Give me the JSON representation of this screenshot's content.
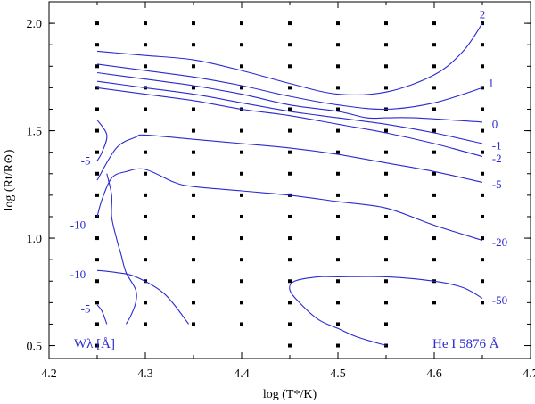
{
  "chart_data": {
    "type": "contour",
    "xlabel": "log (T*/K)",
    "ylabel": "log (Rt/R⊙)",
    "xlim": [
      4.2,
      4.7
    ],
    "ylim": [
      0.44,
      2.1
    ],
    "xticks": [
      "4.2",
      "4.3",
      "4.4",
      "4.5",
      "4.6",
      "4.7"
    ],
    "yticks": [
      "0.5",
      "1.0",
      "1.5",
      "2.0"
    ],
    "annotations": {
      "left": "Wλ [Å]",
      "right": "He I 5876 Å"
    },
    "grid": {
      "x": [
        4.25,
        4.3,
        4.35,
        4.4,
        4.45,
        4.5,
        4.55,
        4.6,
        4.65
      ],
      "y": [
        0.5,
        0.6,
        0.7,
        0.8,
        0.9,
        1.0,
        1.1,
        1.2,
        1.3,
        1.4,
        1.5,
        1.6,
        1.7,
        1.8,
        1.9,
        2.0
      ]
    },
    "contours": [
      {
        "label": "2",
        "label_at": [
          4.647,
          2.04
        ],
        "points": [
          [
            4.25,
            1.87
          ],
          [
            4.3,
            1.85
          ],
          [
            4.35,
            1.83
          ],
          [
            4.4,
            1.78
          ],
          [
            4.45,
            1.72
          ],
          [
            4.5,
            1.67
          ],
          [
            4.55,
            1.68
          ],
          [
            4.6,
            1.76
          ],
          [
            4.63,
            1.87
          ],
          [
            4.65,
            2.0
          ]
        ]
      },
      {
        "label": "1",
        "label_at": [
          4.656,
          1.72
        ],
        "points": [
          [
            4.25,
            1.81
          ],
          [
            4.3,
            1.78
          ],
          [
            4.35,
            1.75
          ],
          [
            4.4,
            1.71
          ],
          [
            4.45,
            1.66
          ],
          [
            4.5,
            1.62
          ],
          [
            4.55,
            1.6
          ],
          [
            4.6,
            1.63
          ],
          [
            4.65,
            1.7
          ]
        ]
      },
      {
        "label": "0",
        "label_at": [
          4.66,
          1.53
        ],
        "points": [
          [
            4.25,
            1.77
          ],
          [
            4.3,
            1.74
          ],
          [
            4.35,
            1.71
          ],
          [
            4.4,
            1.67
          ],
          [
            4.45,
            1.62
          ],
          [
            4.5,
            1.59
          ],
          [
            4.53,
            1.56
          ],
          [
            4.55,
            1.56
          ],
          [
            4.58,
            1.56
          ],
          [
            4.65,
            1.54
          ]
        ]
      },
      {
        "label": "-1",
        "label_at": [
          4.66,
          1.43
        ],
        "points": [
          [
            4.25,
            1.73
          ],
          [
            4.3,
            1.7
          ],
          [
            4.35,
            1.67
          ],
          [
            4.4,
            1.63
          ],
          [
            4.45,
            1.59
          ],
          [
            4.5,
            1.56
          ],
          [
            4.55,
            1.53
          ],
          [
            4.6,
            1.49
          ],
          [
            4.65,
            1.44
          ]
        ]
      },
      {
        "label": "-2",
        "label_at": [
          4.66,
          1.37
        ],
        "points": [
          [
            4.25,
            1.7
          ],
          [
            4.3,
            1.67
          ],
          [
            4.35,
            1.64
          ],
          [
            4.4,
            1.6
          ],
          [
            4.45,
            1.57
          ],
          [
            4.5,
            1.53
          ],
          [
            4.55,
            1.49
          ],
          [
            4.6,
            1.44
          ],
          [
            4.65,
            1.38
          ]
        ]
      },
      {
        "label": "-5",
        "label_at": [
          4.66,
          1.25
        ],
        "points": [
          [
            4.25,
            1.27
          ],
          [
            4.27,
            1.42
          ],
          [
            4.29,
            1.47
          ],
          [
            4.3,
            1.48
          ],
          [
            4.35,
            1.46
          ],
          [
            4.4,
            1.44
          ],
          [
            4.45,
            1.42
          ],
          [
            4.5,
            1.39
          ],
          [
            4.55,
            1.35
          ],
          [
            4.6,
            1.31
          ],
          [
            4.65,
            1.26
          ]
        ]
      },
      {
        "label": "-20",
        "label_at": [
          4.66,
          0.98
        ],
        "points": [
          [
            4.25,
            1.1
          ],
          [
            4.255,
            1.18
          ],
          [
            4.265,
            1.28
          ],
          [
            4.28,
            1.31
          ],
          [
            4.3,
            1.32
          ],
          [
            4.33,
            1.26
          ],
          [
            4.35,
            1.24
          ],
          [
            4.4,
            1.22
          ],
          [
            4.45,
            1.2
          ],
          [
            4.5,
            1.17
          ],
          [
            4.55,
            1.14
          ],
          [
            4.6,
            1.06
          ],
          [
            4.65,
            0.99
          ]
        ]
      },
      {
        "label": "-50",
        "label_at": [
          4.66,
          0.71
        ],
        "points": [
          [
            4.55,
            0.5
          ],
          [
            4.52,
            0.54
          ],
          [
            4.5,
            0.58
          ],
          [
            4.48,
            0.62
          ],
          [
            4.46,
            0.7
          ],
          [
            4.45,
            0.76
          ],
          [
            4.455,
            0.8
          ],
          [
            4.48,
            0.82
          ],
          [
            4.5,
            0.82
          ],
          [
            4.55,
            0.82
          ],
          [
            4.6,
            0.8
          ],
          [
            4.63,
            0.77
          ],
          [
            4.65,
            0.72
          ]
        ]
      },
      {
        "label": "-5",
        "label_at": [
          4.233,
          1.36
        ],
        "points": [
          [
            4.25,
            1.36
          ],
          [
            4.255,
            1.4
          ],
          [
            4.26,
            1.48
          ],
          [
            4.25,
            1.55
          ]
        ]
      },
      {
        "label": "-10",
        "label_at": [
          4.222,
          1.06
        ],
        "points": [
          [
            4.28,
            0.6
          ],
          [
            4.285,
            0.64
          ],
          [
            4.29,
            0.7
          ],
          [
            4.29,
            0.76
          ],
          [
            4.28,
            0.84
          ],
          [
            4.275,
            0.92
          ],
          [
            4.27,
            1.0
          ],
          [
            4.265,
            1.1
          ],
          [
            4.265,
            1.2
          ],
          [
            4.26,
            1.3
          ]
        ]
      },
      {
        "label": "-10",
        "label_at": [
          4.222,
          0.83
        ],
        "points": [
          [
            4.25,
            0.85
          ],
          [
            4.27,
            0.84
          ],
          [
            4.29,
            0.82
          ],
          [
            4.32,
            0.74
          ],
          [
            4.345,
            0.6
          ]
        ]
      },
      {
        "label": "-5",
        "label_at": [
          4.233,
          0.67
        ],
        "points": [
          [
            4.25,
            0.69
          ],
          [
            4.255,
            0.66
          ],
          [
            4.26,
            0.6
          ]
        ]
      }
    ]
  }
}
